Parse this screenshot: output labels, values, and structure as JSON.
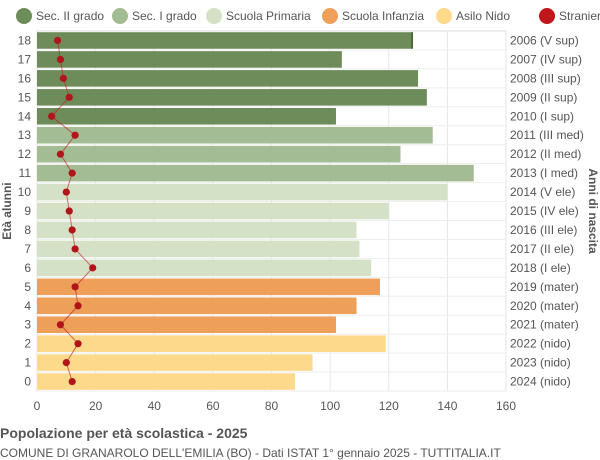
{
  "chart_data": {
    "type": "bar",
    "orientation": "horizontal",
    "title": "Popolazione per età scolastica - 2025",
    "subtitle": "COMUNE DI GRANAROLO DELL'EMILIA (BO) - Dati ISTAT 1° gennaio 2025 - TUTTITALIA.IT",
    "ylabel_left": "Età alunni",
    "ylabel_right": "Anni di nascita",
    "xlim": [
      0,
      160
    ],
    "xticks": [
      0,
      20,
      40,
      60,
      80,
      100,
      120,
      140,
      160
    ],
    "grid": true,
    "legend_position": "top",
    "legend": [
      {
        "name": "Sec. II grado",
        "color": "#6e8c5a"
      },
      {
        "name": "Sec. I grado",
        "color": "#a3bc93"
      },
      {
        "name": "Scuola Primaria",
        "color": "#d5e1c6"
      },
      {
        "name": "Scuola Infanzia",
        "color": "#ee9f5a"
      },
      {
        "name": "Asilo Nido",
        "color": "#fdd98c"
      },
      {
        "name": "Stranieri",
        "color": "#c0161b"
      }
    ],
    "categories": [
      "18",
      "17",
      "16",
      "15",
      "14",
      "13",
      "12",
      "11",
      "10",
      "9",
      "8",
      "7",
      "6",
      "5",
      "4",
      "3",
      "2",
      "1",
      "0"
    ],
    "birth_years": [
      "2006 (V sup)",
      "2007 (IV sup)",
      "2008 (III sup)",
      "2009 (II sup)",
      "2010 (I sup)",
      "2011 (III med)",
      "2012 (II med)",
      "2013 (I med)",
      "2014 (V ele)",
      "2015 (IV ele)",
      "2016 (III ele)",
      "2017 (II ele)",
      "2018 (I ele)",
      "2019 (mater)",
      "2020 (mater)",
      "2021 (mater)",
      "2022 (nido)",
      "2023 (nido)",
      "2024 (nido)"
    ],
    "values": [
      128,
      104,
      130,
      133,
      102,
      135,
      124,
      149,
      140,
      120,
      109,
      110,
      114,
      117,
      109,
      102,
      119,
      94,
      88
    ],
    "groups": [
      "Sec. II grado",
      "Sec. II grado",
      "Sec. II grado",
      "Sec. II grado",
      "Sec. II grado",
      "Sec. I grado",
      "Sec. I grado",
      "Sec. I grado",
      "Scuola Primaria",
      "Scuola Primaria",
      "Scuola Primaria",
      "Scuola Primaria",
      "Scuola Primaria",
      "Scuola Infanzia",
      "Scuola Infanzia",
      "Scuola Infanzia",
      "Asilo Nido",
      "Asilo Nido",
      "Asilo Nido"
    ],
    "stranieri": [
      7,
      8,
      9,
      11,
      5,
      13,
      8,
      12,
      10,
      11,
      12,
      13,
      19,
      13,
      14,
      8,
      14,
      10,
      12
    ]
  }
}
